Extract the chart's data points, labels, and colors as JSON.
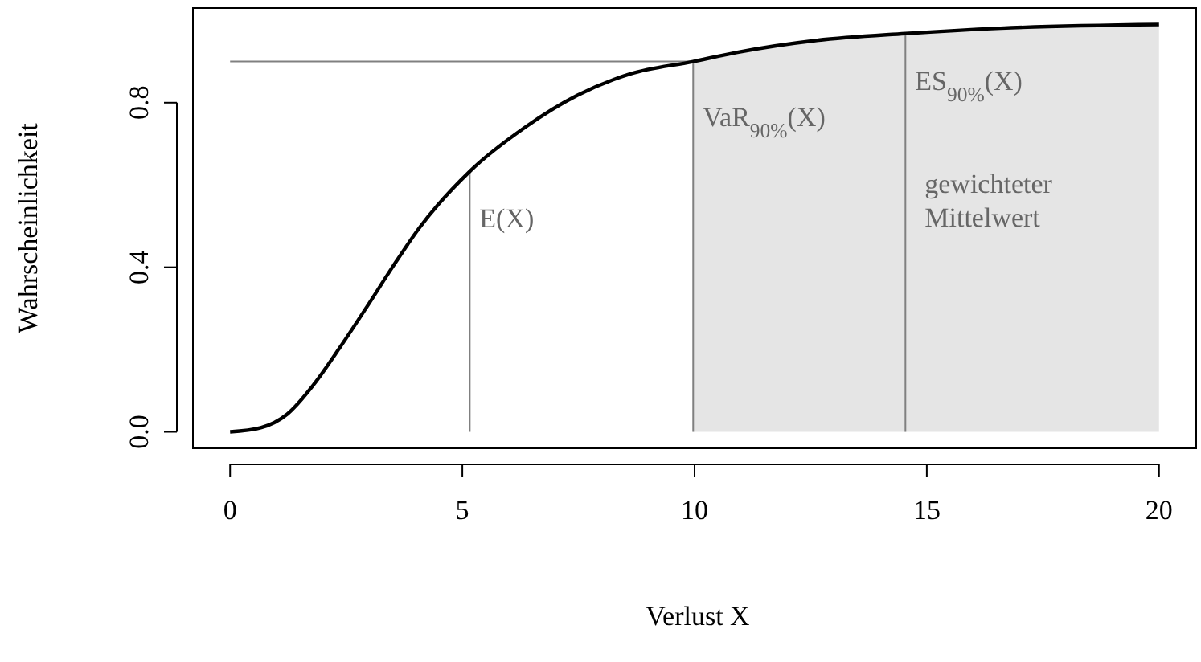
{
  "chart_data": {
    "type": "line",
    "xlabel": "Verlust X",
    "ylabel": "Wahrscheinlichkeit",
    "xlim": [
      -0.8,
      20.8
    ],
    "ylim": [
      -0.04,
      1.03
    ],
    "xticks": [
      0,
      5,
      10,
      15,
      20
    ],
    "yticks": [
      {
        "value": 0,
        "label": "0.0"
      },
      {
        "value": 0.4,
        "label": "0.4"
      },
      {
        "value": 0.8,
        "label": "0.8"
      }
    ],
    "grid": false,
    "marker": "none",
    "line_style": "solid",
    "series": [
      {
        "color": "#000000",
        "x": [
          0,
          0.66,
          1.23,
          1.8,
          2.37,
          2.94,
          3.5,
          4.07,
          5.16,
          6.35,
          7.48,
          8.62,
          9.97,
          10.9,
          12.6,
          14.54,
          16.59,
          20
        ],
        "values": [
          0,
          0.01,
          0.043,
          0.115,
          0.206,
          0.303,
          0.401,
          0.495,
          0.633,
          0.74,
          0.818,
          0.87,
          0.9,
          0.922,
          0.951,
          0.968,
          0.981,
          0.99
        ]
      }
    ],
    "bands": [
      {
        "axis": "x",
        "from": 9.97,
        "to": 20,
        "color": "#e5e5e5"
      }
    ],
    "ref_lines": [
      {
        "axis": "y",
        "value": 0.9,
        "color": "#808080"
      },
      {
        "axis": "x",
        "value": 5.16,
        "label": "E(X)",
        "color": "#808080"
      },
      {
        "axis": "x",
        "value": 9.97,
        "label": "VaR$_{90%}$(X)",
        "color": "#808080"
      },
      {
        "axis": "x",
        "value": 14.54,
        "label": "ES$_{90%}$(X)",
        "color": "#808080"
      }
    ],
    "annotations": [
      {
        "text": "gewichteter Mittelwert",
        "x": 14.54,
        "y": 0.58
      }
    ]
  }
}
